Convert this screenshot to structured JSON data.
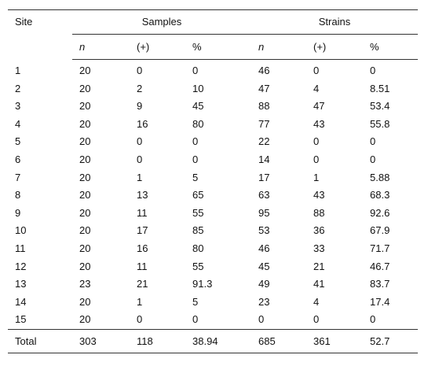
{
  "table": {
    "header": {
      "site": "Site",
      "samples": "Samples",
      "strains": "Strains",
      "sub": [
        "n",
        "(+)",
        "%",
        "n",
        "(+)",
        "%"
      ]
    },
    "rows": [
      [
        "1",
        "20",
        "0",
        "0",
        "46",
        "0",
        "0"
      ],
      [
        "2",
        "20",
        "2",
        "10",
        "47",
        "4",
        "8.51"
      ],
      [
        "3",
        "20",
        "9",
        "45",
        "88",
        "47",
        "53.4"
      ],
      [
        "4",
        "20",
        "16",
        "80",
        "77",
        "43",
        "55.8"
      ],
      [
        "5",
        "20",
        "0",
        "0",
        "22",
        "0",
        "0"
      ],
      [
        "6",
        "20",
        "0",
        "0",
        "14",
        "0",
        "0"
      ],
      [
        "7",
        "20",
        "1",
        "5",
        "17",
        "1",
        "5.88"
      ],
      [
        "8",
        "20",
        "13",
        "65",
        "63",
        "43",
        "68.3"
      ],
      [
        "9",
        "20",
        "11",
        "55",
        "95",
        "88",
        "92.6"
      ],
      [
        "10",
        "20",
        "17",
        "85",
        "53",
        "36",
        "67.9"
      ],
      [
        "11",
        "20",
        "16",
        "80",
        "46",
        "33",
        "71.7"
      ],
      [
        "12",
        "20",
        "11",
        "55",
        "45",
        "21",
        "46.7"
      ],
      [
        "13",
        "23",
        "21",
        "91.3",
        "49",
        "41",
        "83.7"
      ],
      [
        "14",
        "20",
        "1",
        "5",
        "23",
        "4",
        "17.4"
      ],
      [
        "15",
        "20",
        "0",
        "0",
        "0",
        "0",
        "0"
      ]
    ],
    "total": [
      "Total",
      "303",
      "118",
      "38.94",
      "685",
      "361",
      "52.7"
    ]
  }
}
